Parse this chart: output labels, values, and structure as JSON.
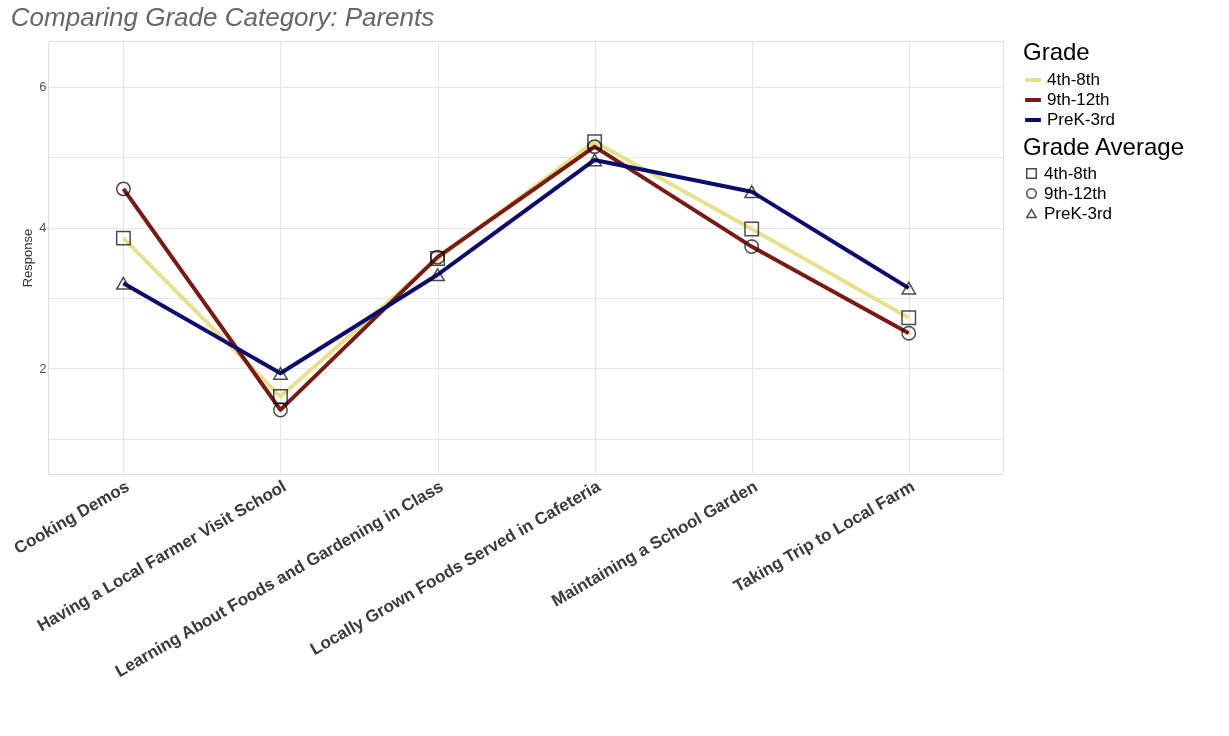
{
  "chart_data": {
    "type": "line",
    "title": "Comparing Grade Category: Parents",
    "ylabel": "Response",
    "legend_title": [
      "Grade",
      "Grade Average"
    ],
    "categories": [
      "Cooking Demos",
      "Having a Local Farmer Visit School",
      "Learning About Foods and Gardening in Class",
      "Locally Grown Foods Served in Cafeteria",
      "Maintaining a School Garden",
      "Taking Trip to Local Farm"
    ],
    "series": [
      {
        "name": "4th-8th",
        "color": "#e8e08a",
        "marker": "square",
        "values": [
          3.85,
          1.6,
          3.56,
          5.22,
          3.98,
          2.72
        ]
      },
      {
        "name": "9th-12th",
        "color": "#7a1a14",
        "marker": "circle",
        "values": [
          4.55,
          1.41,
          3.58,
          5.15,
          3.73,
          2.5
        ]
      },
      {
        "name": "PreK-3rd",
        "color": "#0c0c6e",
        "marker": "triangle",
        "values": [
          3.21,
          1.93,
          3.33,
          4.96,
          4.51,
          3.14
        ]
      }
    ],
    "ylim": [
      0.5,
      6.65
    ],
    "yticks": [
      {
        "value": 1,
        "label": null
      },
      2,
      {
        "value": 3,
        "label": null
      },
      4,
      {
        "value": 5,
        "label": null
      },
      6
    ],
    "grid": true,
    "legend": "right",
    "line_style": "solid"
  }
}
